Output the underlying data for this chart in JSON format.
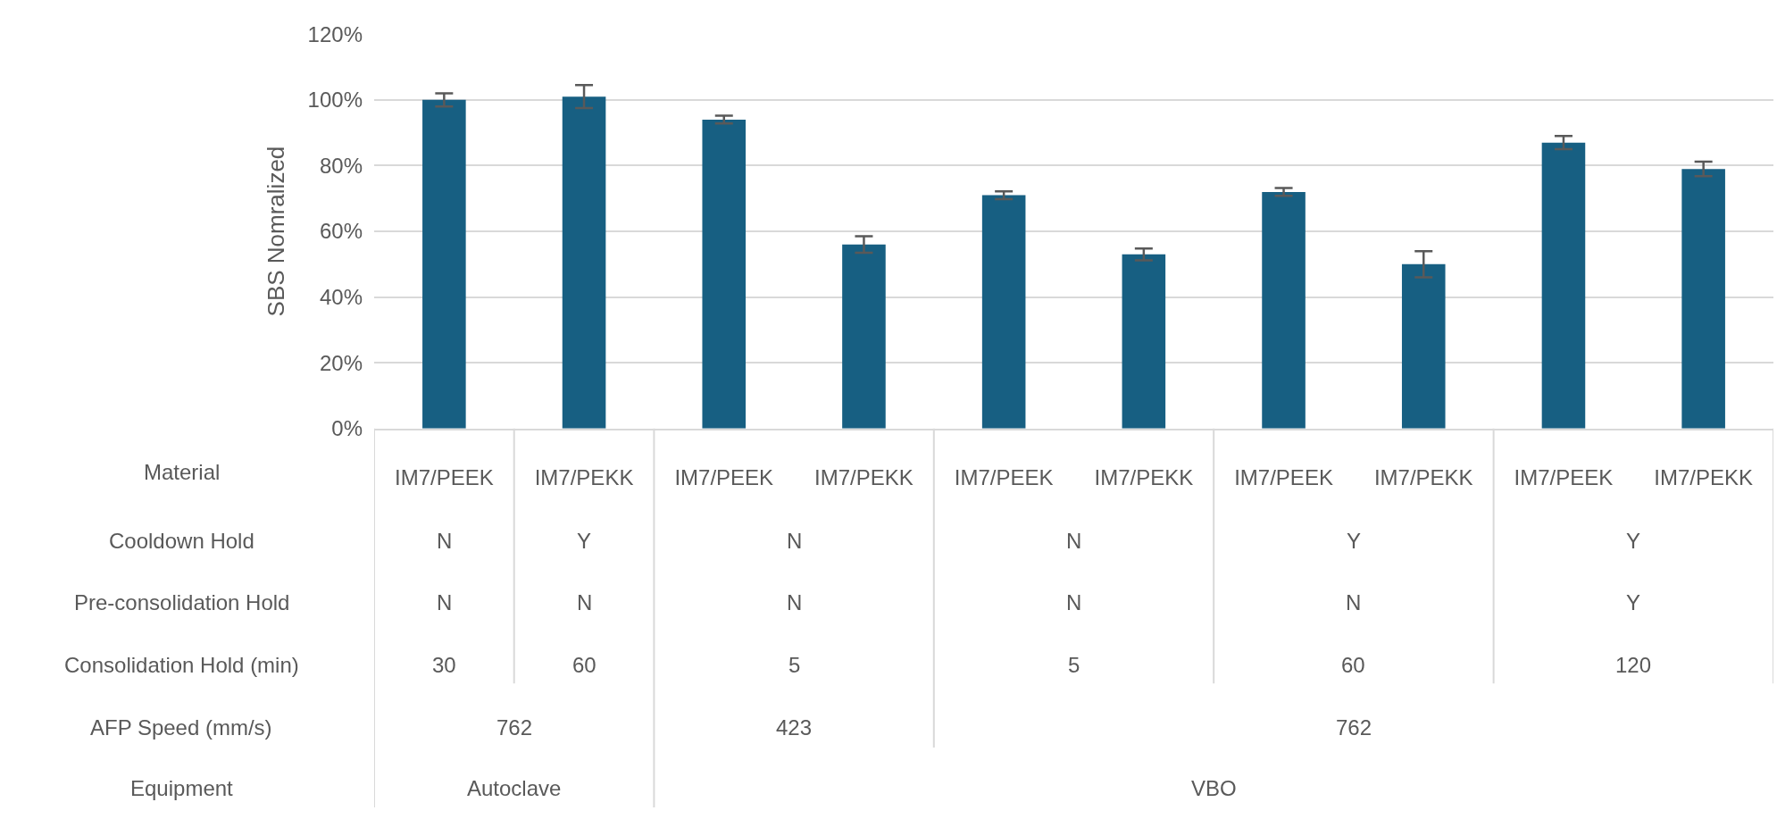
{
  "chart_data": {
    "type": "bar",
    "ylabel": "SBS Nomralized",
    "color": "#175f82",
    "categories": [
      "IM7/PEEK",
      "IM7/PEKK",
      "IM7/PEEK",
      "IM7/PEKK",
      "IM7/PEEK",
      "IM7/PEKK",
      "IM7/PEEK",
      "IM7/PEKK",
      "IM7/PEEK",
      "IM7/PEKK"
    ],
    "values": [
      100,
      101,
      94,
      56,
      71,
      53,
      72,
      50,
      87,
      79
    ],
    "errors": [
      2,
      3.5,
      1.2,
      2.5,
      1.2,
      1.8,
      1.2,
      4,
      2,
      2.2
    ],
    "ylim": [
      0,
      120
    ],
    "yticks": [
      {
        "value": 0,
        "label": "0%"
      },
      {
        "value": 20,
        "label": "20%"
      },
      {
        "value": 40,
        "label": "40%"
      },
      {
        "value": 60,
        "label": "60%"
      },
      {
        "value": 80,
        "label": "80%"
      },
      {
        "value": 100,
        "label": "100%"
      },
      {
        "value": 120,
        "label": "120%"
      }
    ],
    "grid": "y",
    "annotations": [
      "Material",
      "Cooldown Hold",
      "N",
      "Y",
      "N",
      "N",
      "Y",
      "Y",
      "Pre-consolidation Hold",
      "N",
      "N",
      "N",
      "N",
      "N",
      "Y",
      "Consolidation Hold (min)",
      "30",
      "60",
      "5",
      "5",
      "60",
      "120",
      "AFP Speed (mm/s)",
      "762",
      "423",
      "762",
      "Equipment",
      "Autoclave",
      "VBO"
    ]
  }
}
